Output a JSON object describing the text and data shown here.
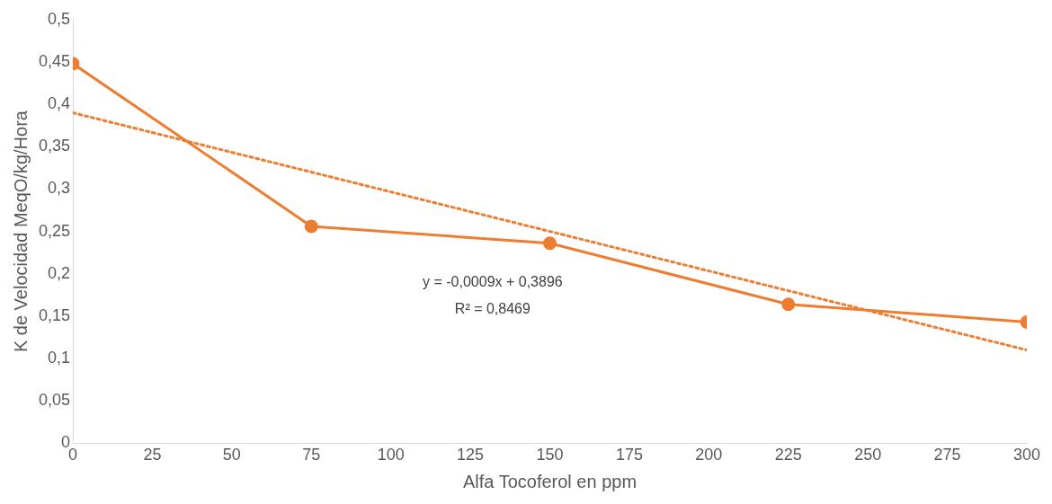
{
  "chart_data": {
    "type": "line",
    "xlabel": "Alfa Tocoferol en ppm",
    "ylabel": "K de Velocidad MeqO/kg/Hora",
    "series": [
      {
        "color": "#ed7d31",
        "x": [
          0,
          75,
          150,
          225,
          300
        ],
        "values": [
          0.448,
          0.256,
          0.236,
          0.164,
          0.143
        ],
        "marker": "circle",
        "line_style": "solid"
      },
      {
        "type": "line",
        "color": "#ed7d31",
        "x": [
          0,
          300
        ],
        "values": [
          0.39,
          0.11
        ],
        "marker": "none",
        "line_style": "dotted"
      }
    ],
    "xlim": [
      0,
      300
    ],
    "xticks": [
      0,
      25,
      50,
      75,
      100,
      125,
      150,
      175,
      200,
      225,
      250,
      275,
      300
    ],
    "ylim": [
      0,
      0.5
    ],
    "yticks": [
      0,
      {
        "value": 0.05,
        "label": "0,05"
      },
      {
        "value": 0.1,
        "label": "0,1"
      },
      {
        "value": 0.15,
        "label": "0,15"
      },
      {
        "value": 0.2,
        "label": "0,2"
      },
      {
        "value": 0.25,
        "label": "0,25"
      },
      {
        "value": 0.3,
        "label": "0,3"
      },
      {
        "value": 0.35,
        "label": "0,35"
      },
      {
        "value": 0.4,
        "label": "0,4"
      },
      {
        "value": 0.45,
        "label": "0,45"
      },
      {
        "value": 0.5,
        "label": "0,5"
      }
    ],
    "grid": false,
    "legend": false,
    "annotations": [
      "y = -0,0009x + 0,3896",
      "R² = 0,8469"
    ]
  }
}
